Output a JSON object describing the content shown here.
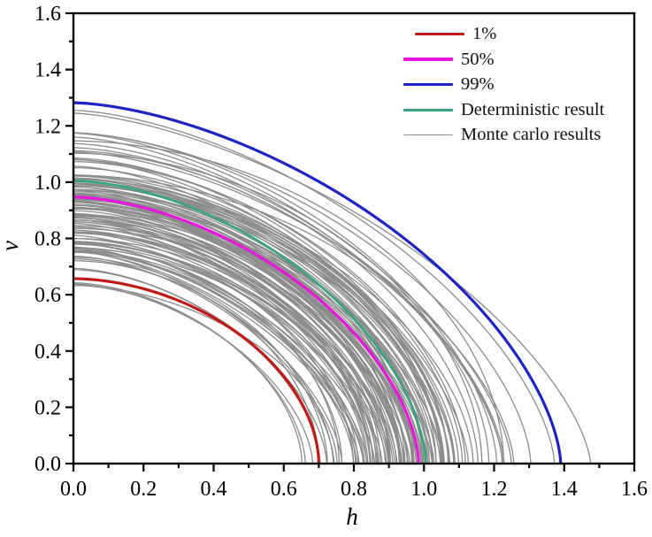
{
  "chart_data": {
    "type": "line",
    "title": "",
    "xlabel": "h",
    "ylabel": "v",
    "xlim": [
      0.0,
      1.6
    ],
    "ylim": [
      0.0,
      1.6
    ],
    "grid": false,
    "legend_position": "upper right",
    "x_axis": {
      "major_ticks": [
        {
          "value": 0.0,
          "label": "0.0"
        },
        {
          "value": 0.2,
          "label": "0.2"
        },
        {
          "value": 0.4,
          "label": "0.4"
        },
        {
          "value": 0.6,
          "label": "0.6"
        },
        {
          "value": 0.8,
          "label": "0.8"
        },
        {
          "value": 1.0,
          "label": "1.0"
        },
        {
          "value": 1.2,
          "label": "1.2"
        },
        {
          "value": 1.4,
          "label": "1.4"
        },
        {
          "value": 1.6,
          "label": "1.6"
        }
      ],
      "minor_tick_values": [
        0.1,
        0.3,
        0.5,
        0.7,
        0.9,
        1.1,
        1.3,
        1.5
      ]
    },
    "y_axis": {
      "major_ticks": [
        {
          "value": 0.0,
          "label": "0.0"
        },
        {
          "value": 0.2,
          "label": "0.2"
        },
        {
          "value": 0.4,
          "label": "0.4"
        },
        {
          "value": 0.6,
          "label": "0.6"
        },
        {
          "value": 0.8,
          "label": "0.8"
        },
        {
          "value": 1.0,
          "label": "1.0"
        },
        {
          "value": 1.2,
          "label": "1.2"
        },
        {
          "value": 1.4,
          "label": "1.4"
        },
        {
          "value": 1.6,
          "label": "1.6"
        }
      ],
      "minor_tick_values": [
        0.1,
        0.3,
        0.5,
        0.7,
        0.9,
        1.1,
        1.3,
        1.5
      ]
    },
    "series": [
      {
        "name": "1%",
        "color": "#c11a18",
        "line_width": 3.2,
        "v_intercept": 0.657,
        "h_intercept": 0.7,
        "shape_exponent": 1.85
      },
      {
        "name": "50%",
        "color": "#e916dc",
        "line_width": 3.2,
        "v_intercept": 0.947,
        "h_intercept": 0.985,
        "shape_exponent": 1.7
      },
      {
        "name": "99%",
        "color": "#1e23c3",
        "line_width": 3.2,
        "v_intercept": 1.282,
        "h_intercept": 1.39,
        "shape_exponent": 1.62
      },
      {
        "name": "Deterministic result",
        "color": "#3ba57c",
        "line_width": 2.8,
        "v_intercept": 1.005,
        "h_intercept": 1.005,
        "shape_exponent": 1.7
      }
    ],
    "monte_carlo": {
      "name": "Monte carlo results",
      "color": "#8c8c8c",
      "line_width": 1.3,
      "count": 118,
      "seed": 1337,
      "v_intercept_mean": 0.905,
      "v_intercept_std": 0.13,
      "v_intercept_range": [
        0.628,
        1.175
      ],
      "h_to_v_ratio_mean": 1.055,
      "h_to_v_ratio_std": 0.04,
      "h_to_v_ratio_range": [
        0.96,
        1.17
      ],
      "shape_exponent_range": [
        1.58,
        1.92
      ],
      "outliers": [
        {
          "v_intercept": 1.245,
          "h_intercept": 1.475,
          "shape_exponent": 1.52
        },
        {
          "v_intercept": 1.255,
          "h_intercept": 1.372,
          "shape_exponent": 1.58
        },
        {
          "v_intercept": 0.633,
          "h_intercept": 0.752,
          "shape_exponent": 1.8
        }
      ]
    },
    "legend": [
      {
        "label": "1%",
        "color": "#c11a18",
        "line_width": 3.4,
        "indent": 13
      },
      {
        "label": "50%",
        "color": "#e916dc",
        "line_width": 3.4,
        "indent": 0
      },
      {
        "label": "99%",
        "color": "#1e23c3",
        "line_width": 3.4,
        "indent": 0
      },
      {
        "label": "Deterministic result",
        "color": "#3ba57c",
        "line_width": 3.0,
        "indent": 0
      },
      {
        "label": "Monte carlo results",
        "color": "#8c8c8c",
        "line_width": 1.6,
        "indent": 0
      }
    ]
  },
  "layout_text": {
    "x_axis_title": "h",
    "y_axis_title": "v"
  }
}
